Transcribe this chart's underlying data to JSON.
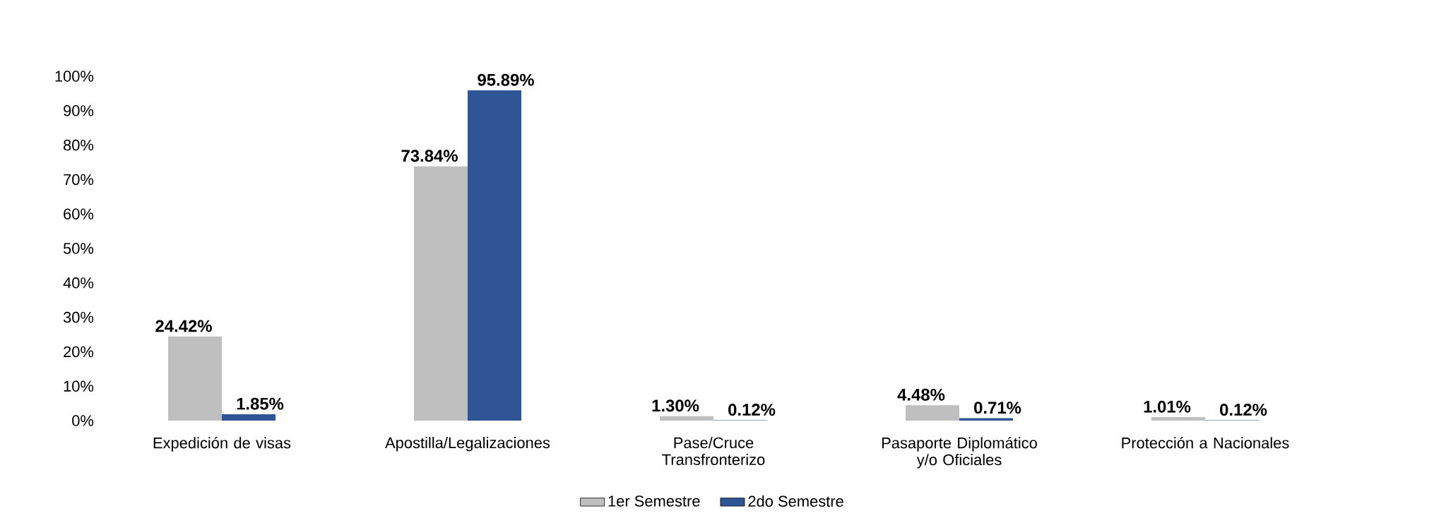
{
  "chart_data": {
    "type": "bar",
    "categories": [
      "Expedición de visas",
      "Apostilla/Legalizaciones",
      "Pase/Cruce Transfronterizo",
      "Pasaporte Diplomático y/o Oficiales",
      "Protección a Nacionales"
    ],
    "series": [
      {
        "name": "1er Semestre",
        "color": "#bfbfbf",
        "values": [
          24.42,
          73.84,
          1.3,
          4.48,
          1.01
        ],
        "value_labels": [
          "24.42%",
          "73.84%",
          "1.30%",
          "4.48%",
          "1.01%"
        ]
      },
      {
        "name": "2do Semestre",
        "color": "#2f5597",
        "values": [
          1.85,
          95.89,
          0.12,
          0.71,
          0.12
        ],
        "value_labels": [
          "1.85%",
          "95.89%",
          "0.12%",
          "0.71%",
          "0.12%"
        ]
      }
    ],
    "ylim": [
      0,
      100
    ],
    "yticks": [
      {
        "value": 0,
        "label": "0%"
      },
      {
        "value": 10,
        "label": "10%"
      },
      {
        "value": 20,
        "label": "20%"
      },
      {
        "value": 30,
        "label": "30%"
      },
      {
        "value": 40,
        "label": "40%"
      },
      {
        "value": 50,
        "label": "50%"
      },
      {
        "value": 60,
        "label": "60%"
      },
      {
        "value": 70,
        "label": "70%"
      },
      {
        "value": 80,
        "label": "80%"
      },
      {
        "value": 90,
        "label": "90%"
      },
      {
        "value": 100,
        "label": "100%"
      }
    ],
    "legend": "bottom",
    "grid": false
  }
}
